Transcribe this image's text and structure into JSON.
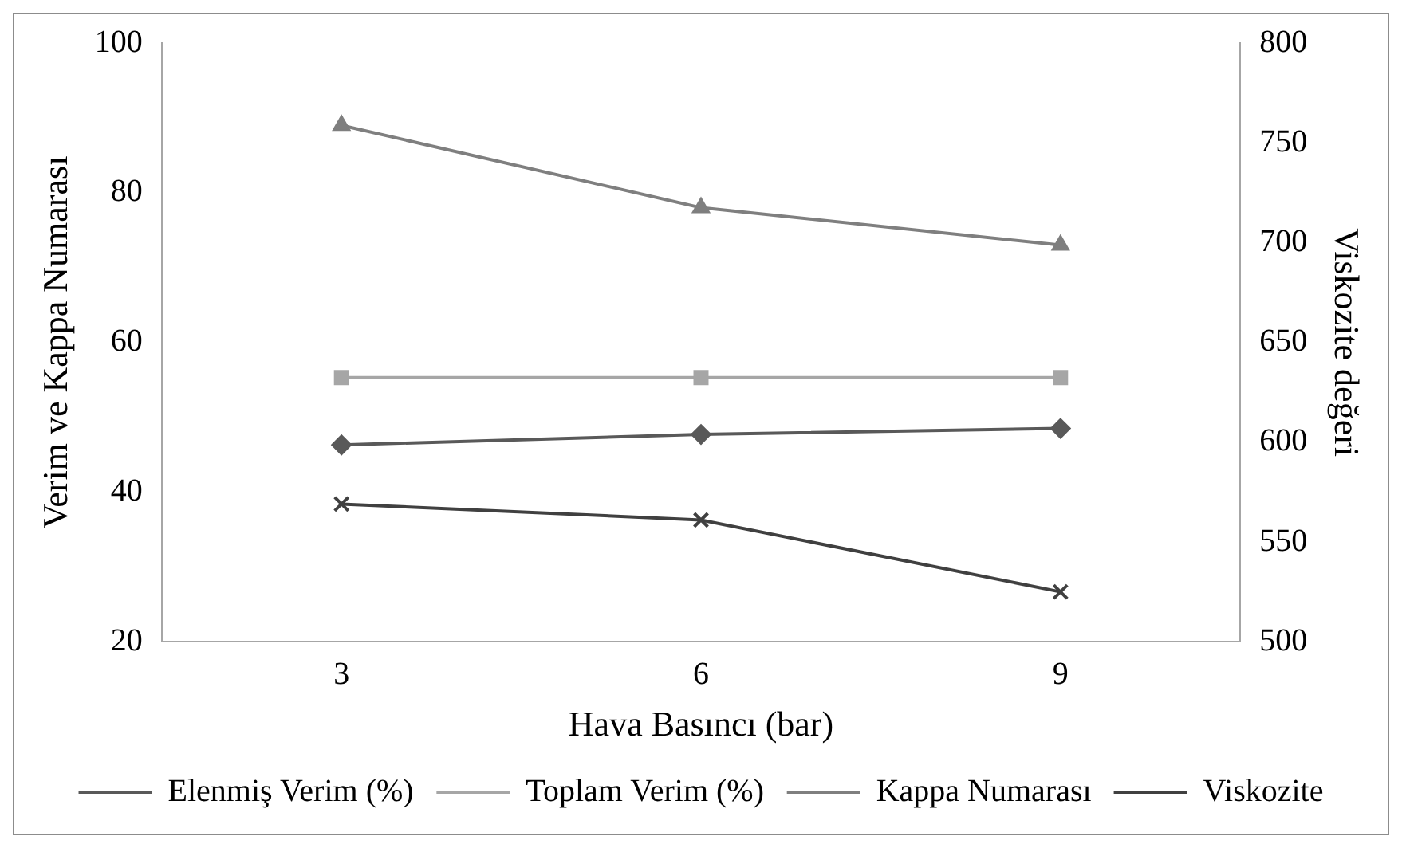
{
  "chart_data": {
    "type": "line",
    "xlabel": "Hava Basıncı (bar)",
    "ylabel": "Verim ve Kappa Numarası",
    "y2label": "Viskozite değeri",
    "categories": [
      "3",
      "6",
      "9"
    ],
    "series": [
      {
        "name": "Elenmiş Verim (%)",
        "color": "#595959",
        "marker": "diamond",
        "values": [
          46.3,
          47.7,
          48.5
        ]
      },
      {
        "name": "Toplam Verim (%)",
        "color": "#a6a6a6",
        "marker": "square",
        "values": [
          55.3,
          55.3,
          55.3
        ]
      },
      {
        "name": "Kappa Numarası",
        "color": "#7f7f7f",
        "marker": "triangle",
        "values": [
          89,
          78,
          73
        ]
      },
      {
        "name": "Viskozite",
        "color": "#404040",
        "marker": "cross",
        "axis": "y2",
        "values": [
          569,
          561,
          525
        ]
      }
    ],
    "ylim": [
      20,
      100
    ],
    "yticks": [
      20,
      40,
      60,
      80,
      100
    ],
    "y2lim": [
      500,
      800
    ],
    "y2ticks": [
      500,
      550,
      600,
      650,
      700,
      750,
      800
    ],
    "grid": false,
    "legend": "bottom"
  }
}
